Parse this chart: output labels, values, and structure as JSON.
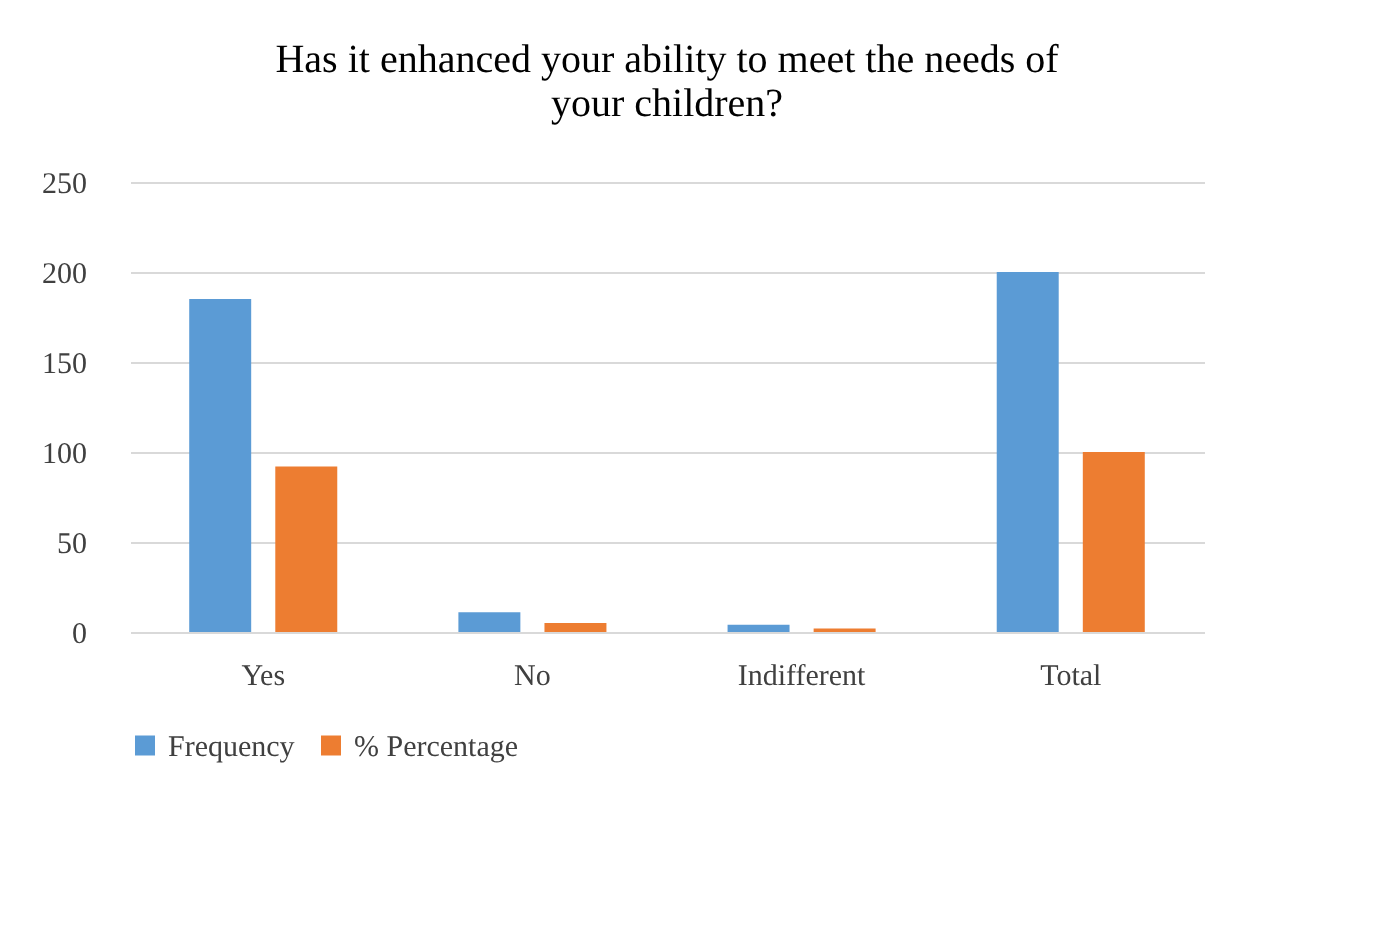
{
  "chart_data": {
    "type": "bar",
    "title": [
      "Has it enhanced your ability to meet the needs of",
      "your children?"
    ],
    "categories": [
      "Yes",
      "No",
      "Indifferent",
      "Total"
    ],
    "series": [
      {
        "name": "Frequency",
        "color": "#5b9bd5",
        "values": [
          185,
          11,
          4,
          200
        ]
      },
      {
        "name": "% Percentage",
        "color": "#ed7d31",
        "values": [
          92,
          5,
          2,
          100
        ]
      }
    ],
    "ylim": [
      0,
      250
    ],
    "yticks": [
      0,
      50,
      100,
      150,
      200,
      250
    ],
    "grid": "y",
    "legend": "bottom"
  }
}
